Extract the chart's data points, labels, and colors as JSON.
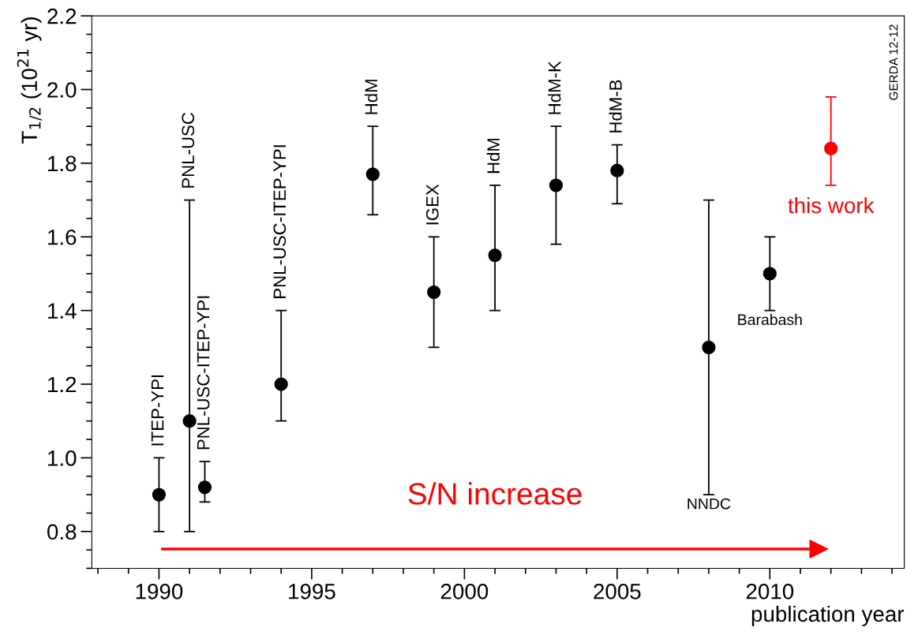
{
  "chart_data": {
    "type": "scatter",
    "xlabel": "publication year",
    "ylabel": "T$_{1/2}$ (10$^{21}$ yr)",
    "xlim": [
      1987.8,
      2014.4
    ],
    "xticks": [
      1990,
      1995,
      2000,
      2005,
      2010
    ],
    "ylim": [
      0.7,
      2.2
    ],
    "yticks": [
      0.8,
      {
        "value": 1,
        "label": "1.0"
      },
      1.2,
      1.4,
      1.6,
      1.8,
      {
        "value": 2,
        "label": "2.0"
      },
      2.2
    ],
    "marker": "circle",
    "grid": false,
    "legend": false,
    "series": [
      {
        "color": "#000000",
        "x": [
          1990,
          1991,
          1991.5,
          1994,
          1997,
          1999,
          2001,
          2003,
          2005,
          2008,
          2010
        ],
        "values": [
          0.9,
          1.1,
          0.92,
          1.2,
          1.77,
          1.45,
          1.55,
          1.74,
          1.78,
          1.3,
          1.5
        ],
        "errors": [
          [
            0.8,
            1.0
          ],
          [
            0.8,
            1.7
          ],
          [
            0.88,
            0.99
          ],
          [
            1.1,
            1.4
          ],
          [
            1.66,
            1.9
          ],
          [
            1.3,
            1.6
          ],
          [
            1.4,
            1.74
          ],
          [
            1.58,
            1.9
          ],
          [
            1.69,
            1.85
          ],
          [
            0.9,
            1.7
          ],
          [
            1.4,
            1.6
          ]
        ]
      },
      {
        "name": "this work",
        "color": "#ff0000",
        "x": [
          2012
        ],
        "values": [
          1.84
        ],
        "errors": [
          [
            1.74,
            1.98
          ]
        ]
      }
    ],
    "annotations": [
      {
        "text": "ITEP-YPI",
        "x": 1990,
        "y": 1.0
      },
      {
        "text": "PNL-USC",
        "x": 1991,
        "y": 1.7
      },
      {
        "text": "PNL-USC-ITEP-YPI",
        "x": 1991.5,
        "y": 0.99
      },
      {
        "text": "PNL-USC-ITEP-YPI",
        "x": 1994,
        "y": 1.4
      },
      {
        "text": "HdM",
        "x": 1997,
        "y": 1.9
      },
      {
        "text": "IGEX",
        "x": 1999,
        "y": 1.6
      },
      {
        "text": "HdM",
        "x": 2001,
        "y": 1.74
      },
      {
        "text": "HdM-K",
        "x": 2003,
        "y": 1.9
      },
      {
        "text": "HdM-B",
        "x": 2005,
        "y": 1.85
      },
      {
        "text": "NNDC",
        "x": 2008,
        "y": 0.9
      },
      {
        "text": "Barabash",
        "x": 2010,
        "y": 1.4
      },
      "S/N increase",
      "GERDA 12-12"
    ]
  }
}
